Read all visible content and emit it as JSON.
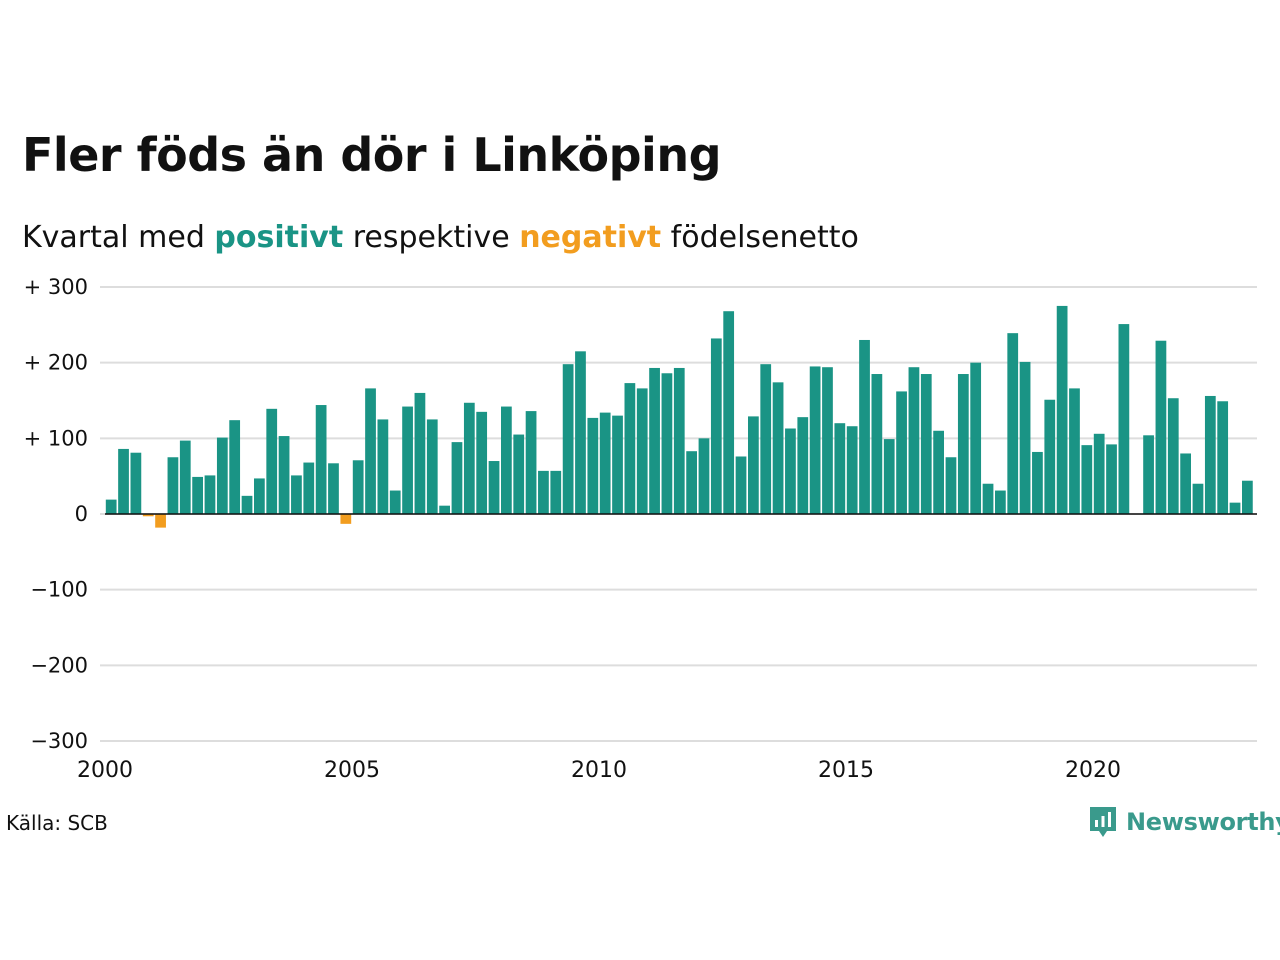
{
  "title": "Fler föds än dör i Linköping",
  "subtitle": {
    "before": "Kvartal med ",
    "positive": "positivt",
    "middle": " respektive ",
    "negative": "negativt",
    "after": " födelsenetto"
  },
  "source": "Källa: SCB",
  "logo": {
    "text": "Newsworthy",
    "icon": "bar-chart-bubble-icon"
  },
  "colors": {
    "positive": "#1a9485",
    "negative": "#f29d1f",
    "grid": "#dddddd",
    "logo": "#3a9a8c"
  },
  "chart_data": {
    "type": "bar",
    "x_start": "2000 Q1",
    "x_ticks": [
      "2000",
      "2005",
      "2010",
      "2015",
      "2020"
    ],
    "y_ticks": [
      "+ 300",
      "+ 200",
      "+ 100",
      "0",
      "−100",
      "−200",
      "−300"
    ],
    "ylim": [
      -300,
      300
    ],
    "grid": true,
    "values": [
      19,
      86,
      81,
      -3,
      -18,
      75,
      97,
      49,
      51,
      101,
      124,
      24,
      47,
      139,
      103,
      51,
      68,
      144,
      67,
      -13,
      71,
      166,
      125,
      31,
      142,
      160,
      125,
      11,
      95,
      147,
      135,
      70,
      142,
      105,
      136,
      57,
      57,
      198,
      215,
      127,
      134,
      130,
      173,
      166,
      193,
      186,
      193,
      83,
      100,
      232,
      268,
      76,
      129,
      198,
      174,
      113,
      128,
      195,
      194,
      120,
      116,
      230,
      185,
      99,
      162,
      194,
      185,
      110,
      75,
      185,
      200,
      40,
      31,
      239,
      201,
      82,
      151,
      275,
      166,
      91,
      106,
      92,
      251,
      0,
      104,
      229,
      153,
      80,
      40,
      156,
      149,
      15,
      44
    ]
  }
}
